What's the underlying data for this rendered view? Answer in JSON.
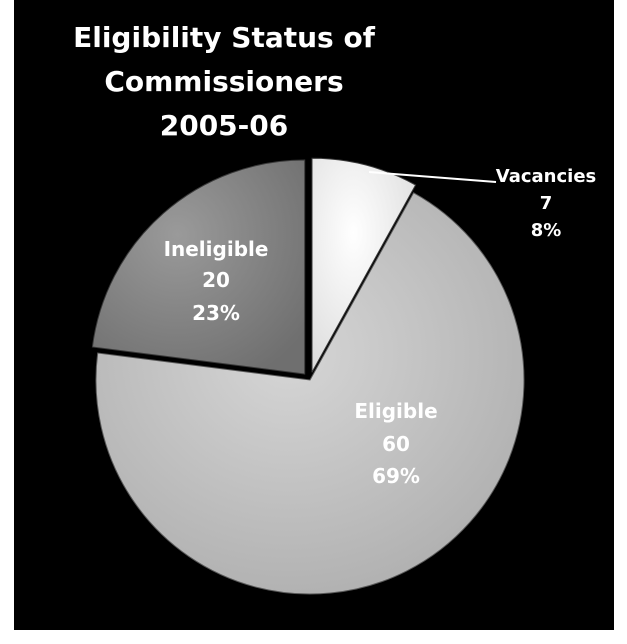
{
  "chart_data": {
    "type": "pie",
    "title": [
      "Eligibility Status of",
      "Commissioners",
      "2005-06"
    ],
    "slices": [
      {
        "label": "Vacancies",
        "value": 7,
        "percent": "8%",
        "color": "#f4f4f4"
      },
      {
        "label": "Eligible",
        "value": 60,
        "percent": "69%",
        "color": "#c6c6c6"
      },
      {
        "label": "Ineligible",
        "value": 20,
        "percent": "23%",
        "color": "#8a8a8a"
      }
    ]
  }
}
